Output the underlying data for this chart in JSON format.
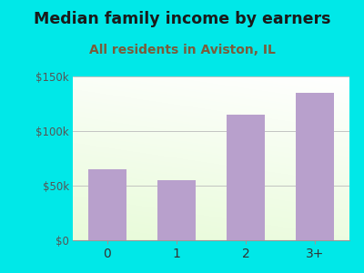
{
  "categories": [
    "0",
    "1",
    "2",
    "3+"
  ],
  "values": [
    65000,
    55000,
    115000,
    135000
  ],
  "bar_color": "#b8a0cc",
  "title": "Median family income by earners",
  "subtitle": "All residents in Aviston, IL",
  "title_fontsize": 12.5,
  "subtitle_fontsize": 10,
  "title_color": "#1a1a1a",
  "subtitle_color": "#7a5c3a",
  "ylim": [
    0,
    150000
  ],
  "yticks": [
    0,
    50000,
    100000,
    150000
  ],
  "ytick_labels": [
    "$0",
    "$50k",
    "$100k",
    "$150k"
  ],
  "background_color": "#00e8e8",
  "grad_top": "#f8fff8",
  "grad_bottom": "#d8ecc0",
  "grad_right": "#f0f8ff"
}
